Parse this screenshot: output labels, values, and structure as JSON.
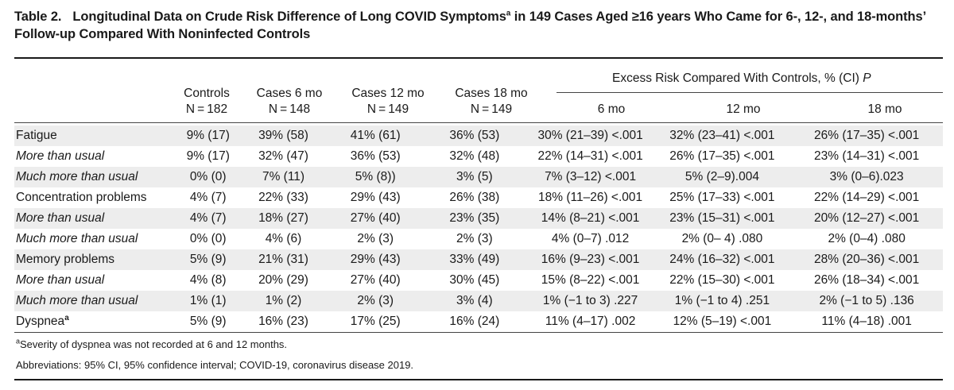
{
  "title": {
    "label": "Table 2.",
    "text_part1": "Longitudinal Data on Crude Risk Difference of Long COVID Symptoms",
    "text_sup": "a",
    "text_part2": " in 149 Cases Aged ≥16 years Who Came for 6-, 12-, and 18-months’ Follow-up Compared With Noninfected Controls"
  },
  "columns": [
    {
      "name": "Controls",
      "n": "N = 182"
    },
    {
      "name": "Cases 6 mo",
      "n": "N = 148"
    },
    {
      "name": "Cases 12 mo",
      "n": "N = 149"
    },
    {
      "name": "Cases 18 mo",
      "n": "N = 149"
    }
  ],
  "excess_header": {
    "text": "Excess Risk Compared With Controls, % (CI) ",
    "p": "P"
  },
  "excess_columns": [
    "6 mo",
    "12 mo",
    "18 mo"
  ],
  "rows": [
    {
      "label": "Fatigue",
      "italic": false,
      "shaded": true,
      "cells": [
        "9% (17)",
        "39% (58)",
        "41% (61)",
        "36% (53)",
        "30% (21–39) <.001",
        "32% (23–41) <.001",
        "26% (17–35) <.001"
      ]
    },
    {
      "label": "More than usual",
      "italic": true,
      "shaded": false,
      "cells": [
        "9% (17)",
        "32% (47)",
        "36% (53)",
        "32% (48)",
        "22% (14–31) <.001",
        "26% (17–35) <.001",
        "23% (14–31) <.001"
      ]
    },
    {
      "label": "Much more than usual",
      "italic": true,
      "shaded": true,
      "cells": [
        "0% (0)",
        "7% (11)",
        "5% (8))",
        "3% (5)",
        "7% (3–12) <.001",
        "5% (2–9).004",
        "3% (0–6).023"
      ]
    },
    {
      "label": "Concentration problems",
      "italic": false,
      "shaded": false,
      "cells": [
        "4% (7)",
        "22% (33)",
        "29% (43)",
        "26% (38)",
        "18% (11–26) <.001",
        "25% (17–33) <.001",
        "22% (14–29) <.001"
      ]
    },
    {
      "label": "More than usual",
      "italic": true,
      "shaded": true,
      "cells": [
        "4% (7)",
        "18% (27)",
        "27% (40)",
        "23% (35)",
        "14% (8–21) <.001",
        "23% (15–31) <.001",
        "20% (12–27) <.001"
      ]
    },
    {
      "label": "Much more than usual",
      "italic": true,
      "shaded": false,
      "cells": [
        "0% (0)",
        "4% (6)",
        "2% (3)",
        "2% (3)",
        "4% (0–7) .012",
        "2% (0– 4) .080",
        "2% (0–4) .080"
      ]
    },
    {
      "label": "Memory problems",
      "italic": false,
      "shaded": true,
      "cells": [
        "5% (9)",
        "21% (31)",
        "29% (43)",
        "33% (49)",
        "16% (9–23) <.001",
        "24% (16–32) <.001",
        "28% (20–36) <.001"
      ]
    },
    {
      "label": "More than usual",
      "italic": true,
      "shaded": false,
      "cells": [
        "4% (8)",
        "20% (29)",
        "27% (40)",
        "30% (45)",
        "15% (8–22) <.001",
        "22% (15–30) <.001",
        "26% (18–34) <.001"
      ]
    },
    {
      "label": "Much more than usual",
      "italic": true,
      "shaded": true,
      "cells": [
        "1% (1)",
        "1% (2)",
        "2% (3)",
        "3% (4)",
        "1% (−1 to 3) .227",
        "1% (−1 to 4) .251",
        "2% (−1 to 5) .136"
      ]
    },
    {
      "label": "Dyspnea",
      "label_sup": "a",
      "italic": false,
      "shaded": false,
      "cells": [
        "5% (9)",
        "16% (23)",
        "17% (25)",
        "16% (24)",
        "11% (4–17) .002",
        "12% (5–19) <.001",
        "11% (4–18) .001"
      ]
    }
  ],
  "footnotes": {
    "note_sup": "a",
    "note_text": "Severity of dyspnea was not recorded at 6 and 12 months.",
    "abbreviations": "Abbreviations: 95% CI, 95% confidence interval; COVID-19, coronavirus disease 2019."
  }
}
